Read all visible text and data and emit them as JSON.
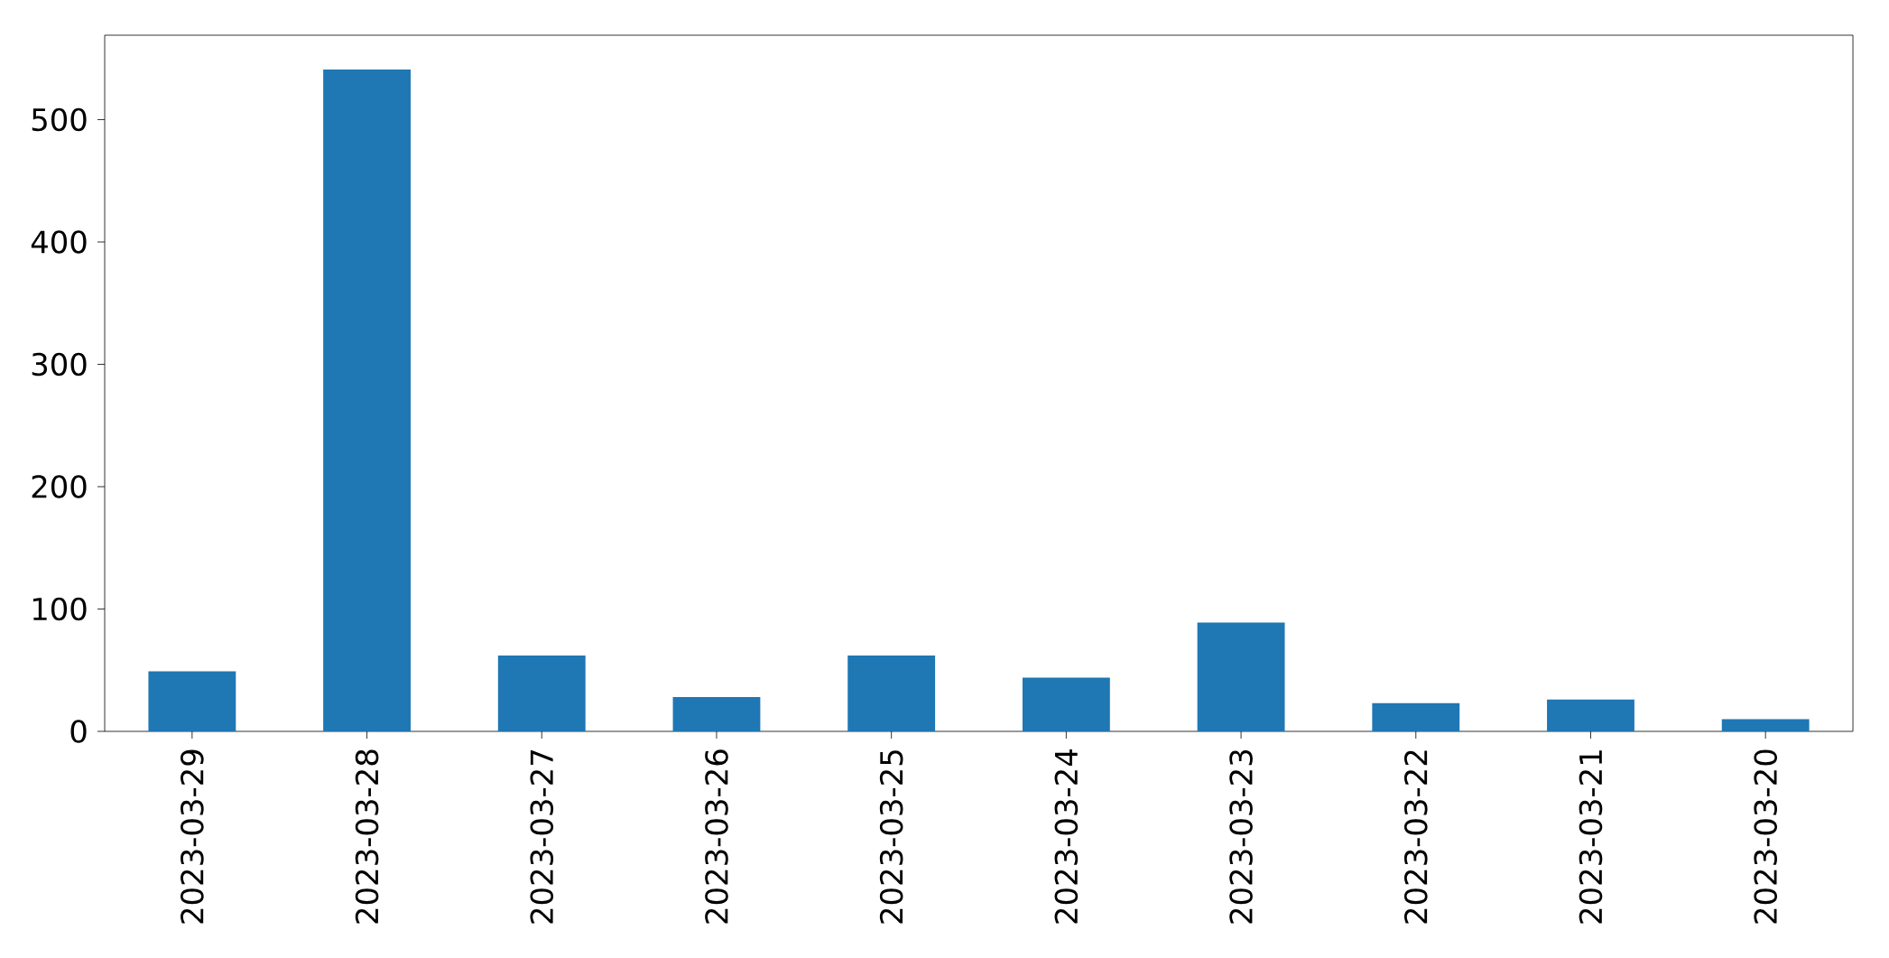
{
  "chart_data": {
    "type": "bar",
    "categories": [
      "2023-03-29",
      "2023-03-28",
      "2023-03-27",
      "2023-03-26",
      "2023-03-25",
      "2023-03-24",
      "2023-03-23",
      "2023-03-22",
      "2023-03-21",
      "2023-03-20"
    ],
    "values": [
      49,
      541,
      62,
      28,
      62,
      44,
      89,
      23,
      26,
      10
    ],
    "color": "#1f77b4",
    "ylim": [
      0,
      569
    ],
    "yticks": [
      0,
      100,
      200,
      300,
      400,
      500
    ],
    "grid": false
  }
}
